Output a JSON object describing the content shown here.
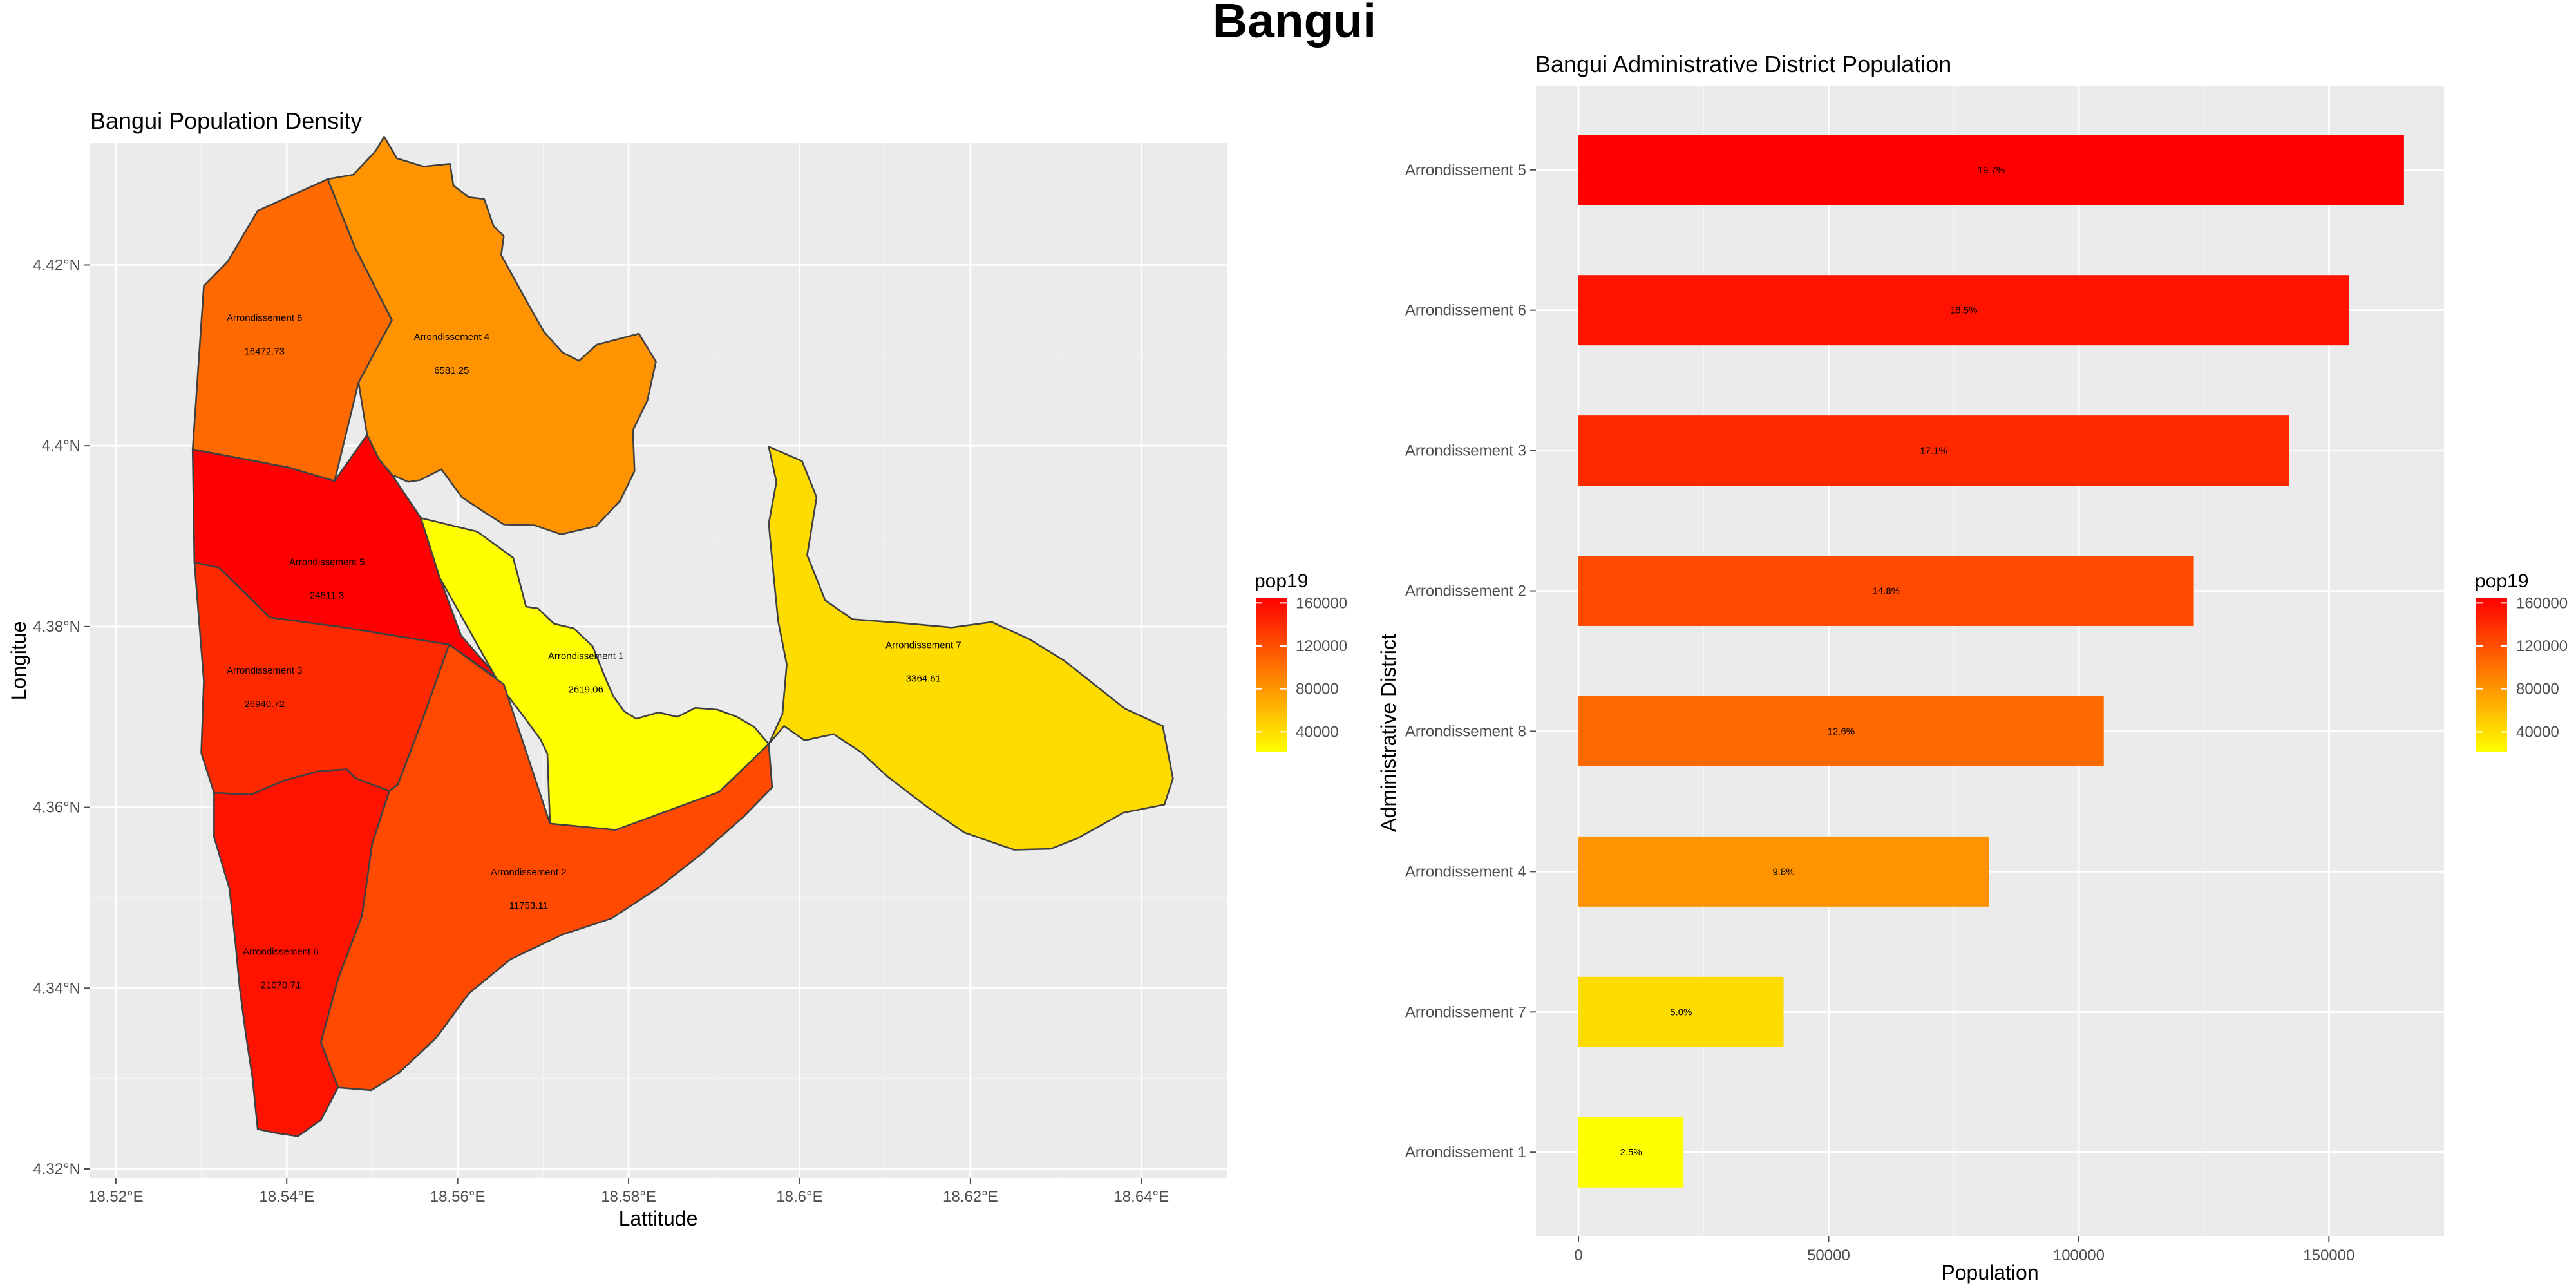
{
  "figure": {
    "title": "Bangui"
  },
  "colors": {
    "scale_low": "#ffff00",
    "scale_high": "#ff0000",
    "panel_background": "#ebebeb",
    "grid": "#ffffff",
    "district_outline": "#404040"
  },
  "chart_data": [
    {
      "type": "map",
      "title": "Bangui Population Density",
      "xlabel": "Lattitude",
      "ylabel": "Longitue",
      "xlim": [
        18.517,
        18.65
      ],
      "ylim": [
        4.319,
        4.4335
      ],
      "x_ticks": [
        18.52,
        18.54,
        18.56,
        18.58,
        18.6,
        18.62,
        18.64
      ],
      "x_tick_labels": [
        "18.52°E",
        "18.54°E",
        "18.56°E",
        "18.58°E",
        "18.6°E",
        "18.62°E",
        "18.64°E"
      ],
      "y_ticks": [
        4.32,
        4.34,
        4.36,
        4.38,
        4.4,
        4.42
      ],
      "y_tick_labels": [
        "4.32°N",
        "4.34°N",
        "4.36°N",
        "4.38°N",
        "4.4°N",
        "4.42°N"
      ],
      "fill_variable": "pop19",
      "grid": true,
      "regions": [
        {
          "name": "Arrondissement 8",
          "density": "16472.73",
          "pop19": 105000,
          "label_at": [
            18.5374,
            4.4138
          ],
          "boundary": [
            [
              18.5303,
              4.4177
            ],
            [
              18.5331,
              4.4204
            ],
            [
              18.5366,
              4.426
            ],
            [
              18.5448,
              4.4295
            ],
            [
              18.548,
              4.4219
            ],
            [
              18.5523,
              4.4139
            ],
            [
              18.5484,
              4.407
            ],
            [
              18.5456,
              4.3961
            ],
            [
              18.5402,
              4.3976
            ],
            [
              18.529,
              4.3996
            ],
            [
              18.5303,
              4.4177
            ]
          ]
        },
        {
          "name": "Arrondissement 4",
          "density": "6581.25",
          "pop19": 82000,
          "label_at": [
            18.5593,
            4.4117
          ],
          "boundary": [
            [
              18.5448,
              4.4295
            ],
            [
              18.5478,
              4.43
            ],
            [
              18.5504,
              4.4326
            ],
            [
              18.5514,
              4.4342
            ],
            [
              18.5529,
              4.4318
            ],
            [
              18.556,
              4.4309
            ],
            [
              18.5591,
              4.4312
            ],
            [
              18.5595,
              4.4288
            ],
            [
              18.5613,
              4.4275
            ],
            [
              18.5631,
              4.4273
            ],
            [
              18.5642,
              4.4243
            ],
            [
              18.5654,
              4.4232
            ],
            [
              18.5651,
              4.4211
            ],
            [
              18.5683,
              4.4156
            ],
            [
              18.5701,
              4.4126
            ],
            [
              18.5723,
              4.4103
            ],
            [
              18.5742,
              4.4094
            ],
            [
              18.5763,
              4.4112
            ],
            [
              18.5812,
              4.4124
            ],
            [
              18.5832,
              4.4093
            ],
            [
              18.5822,
              4.405
            ],
            [
              18.5805,
              4.4017
            ],
            [
              18.5807,
              4.3972
            ],
            [
              18.579,
              4.3939
            ],
            [
              18.5762,
              4.3911
            ],
            [
              18.5721,
              4.3902
            ],
            [
              18.569,
              4.3912
            ],
            [
              18.5654,
              4.3913
            ],
            [
              18.5632,
              4.3926
            ],
            [
              18.5605,
              4.3943
            ],
            [
              18.5581,
              4.3974
            ],
            [
              18.5556,
              4.3962
            ],
            [
              18.5542,
              4.396
            ],
            [
              18.5523,
              4.3968
            ],
            [
              18.5508,
              4.3985
            ],
            [
              18.5494,
              4.4012
            ],
            [
              18.5484,
              4.407
            ],
            [
              18.5523,
              4.4139
            ],
            [
              18.548,
              4.4219
            ],
            [
              18.5448,
              4.4295
            ]
          ]
        },
        {
          "name": "Arrondissement 5",
          "density": "24511.3",
          "pop19": 165000,
          "label_at": [
            18.5447,
            4.3868
          ],
          "boundary": [
            [
              18.529,
              4.3996
            ],
            [
              18.5402,
              4.3976
            ],
            [
              18.5456,
              4.3961
            ],
            [
              18.5494,
              4.4012
            ],
            [
              18.5508,
              4.3985
            ],
            [
              18.5523,
              4.3968
            ],
            [
              18.5557,
              4.392
            ],
            [
              18.5579,
              4.3854
            ],
            [
              18.5604,
              4.379
            ],
            [
              18.5654,
              4.3736
            ],
            [
              18.565,
              4.374
            ],
            [
              18.559,
              4.378
            ],
            [
              18.546,
              4.38
            ],
            [
              18.538,
              4.381
            ],
            [
              18.5321,
              4.3865
            ],
            [
              18.5292,
              4.3871
            ],
            [
              18.529,
              4.3996
            ]
          ]
        },
        {
          "name": "Arrondissement 1",
          "density": "2619.06",
          "pop19": 21000,
          "label_at": [
            18.575,
            4.3764
          ],
          "boundary": [
            [
              18.5557,
              4.392
            ],
            [
              18.5623,
              4.3905
            ],
            [
              18.5665,
              4.3876
            ],
            [
              18.568,
              4.3822
            ],
            [
              18.5694,
              4.382
            ],
            [
              18.5713,
              4.3803
            ],
            [
              18.5736,
              4.3798
            ],
            [
              18.5758,
              4.3778
            ],
            [
              18.5772,
              4.3745
            ],
            [
              18.5782,
              4.3723
            ],
            [
              18.5795,
              4.3706
            ],
            [
              18.5809,
              4.3698
            ],
            [
              18.5835,
              4.3705
            ],
            [
              18.5857,
              4.37
            ],
            [
              18.5878,
              4.371
            ],
            [
              18.5904,
              4.3708
            ],
            [
              18.5927,
              4.37
            ],
            [
              18.5947,
              4.3689
            ],
            [
              18.5964,
              4.367
            ],
            [
              18.595,
              4.363
            ],
            [
              18.5906,
              4.3617
            ],
            [
              18.5862,
              4.3597
            ],
            [
              18.583,
              4.3578
            ],
            [
              18.5785,
              4.3575
            ],
            [
              18.5747,
              4.3577
            ],
            [
              18.5708,
              4.3582
            ],
            [
              18.5705,
              4.3659
            ],
            [
              18.5697,
              4.3675
            ],
            [
              18.5676,
              4.3702
            ],
            [
              18.5651,
              4.3733
            ],
            [
              18.5579,
              4.3854
            ],
            [
              18.5557,
              4.392
            ]
          ]
        },
        {
          "name": "Arrondissement 7",
          "density": "3364.61",
          "pop19": 41000,
          "label_at": [
            18.6145,
            4.3776
          ],
          "boundary": [
            [
              18.5964,
              4.3999
            ],
            [
              18.6003,
              4.3983
            ],
            [
              18.602,
              4.3943
            ],
            [
              18.6009,
              4.3879
            ],
            [
              18.603,
              4.3829
            ],
            [
              18.6062,
              4.3808
            ],
            [
              18.6119,
              4.3804
            ],
            [
              18.6178,
              4.3799
            ],
            [
              18.6225,
              4.3805
            ],
            [
              18.6269,
              4.3786
            ],
            [
              18.631,
              4.3762
            ],
            [
              18.6381,
              4.3709
            ],
            [
              18.6425,
              4.369
            ],
            [
              18.6437,
              4.3632
            ],
            [
              18.6427,
              4.3603
            ],
            [
              18.6379,
              4.3594
            ],
            [
              18.6326,
              4.3566
            ],
            [
              18.6294,
              4.3554
            ],
            [
              18.6251,
              4.3553
            ],
            [
              18.6193,
              4.3572
            ],
            [
              18.615,
              4.36
            ],
            [
              18.6103,
              4.3634
            ],
            [
              18.6072,
              4.3661
            ],
            [
              18.604,
              4.3681
            ],
            [
              18.6006,
              4.3674
            ],
            [
              18.5982,
              4.369
            ],
            [
              18.5964,
              4.367
            ],
            [
              18.598,
              4.3703
            ],
            [
              18.5985,
              4.3758
            ],
            [
              18.5975,
              4.3806
            ],
            [
              18.597,
              4.3853
            ],
            [
              18.5964,
              4.3914
            ],
            [
              18.5973,
              4.396
            ],
            [
              18.5964,
              4.3999
            ]
          ]
        },
        {
          "name": "Arrondissement 3",
          "density": "26940.72",
          "pop19": 142000,
          "label_at": [
            18.5374,
            4.3748
          ],
          "boundary": [
            [
              18.5292,
              4.3871
            ],
            [
              18.5321,
              4.3865
            ],
            [
              18.538,
              4.381
            ],
            [
              18.546,
              4.38
            ],
            [
              18.559,
              4.378
            ],
            [
              18.556,
              4.37
            ],
            [
              18.553,
              4.3625
            ],
            [
              18.552,
              4.3618
            ],
            [
              18.5481,
              4.3632
            ],
            [
              18.547,
              4.3642
            ],
            [
              18.5438,
              4.364
            ],
            [
              18.5398,
              4.363
            ],
            [
              18.5358,
              4.3614
            ],
            [
              18.5315,
              4.3616
            ],
            [
              18.53,
              4.366
            ],
            [
              18.5303,
              4.374
            ],
            [
              18.5292,
              4.3871
            ]
          ]
        },
        {
          "name": "Arrondissement 2",
          "density": "11753.11",
          "pop19": 123000,
          "label_at": [
            18.5683,
            4.3525
          ],
          "boundary": [
            [
              18.559,
              4.378
            ],
            [
              18.5654,
              4.3736
            ],
            [
              18.5708,
              4.3582
            ],
            [
              18.5785,
              4.3575
            ],
            [
              18.5906,
              4.3617
            ],
            [
              18.5964,
              4.367
            ],
            [
              18.5968,
              4.3622
            ],
            [
              18.5935,
              4.359
            ],
            [
              18.5886,
              4.3549
            ],
            [
              18.5835,
              4.3511
            ],
            [
              18.578,
              4.3477
            ],
            [
              18.5722,
              4.3459
            ],
            [
              18.5662,
              4.3432
            ],
            [
              18.5613,
              4.3394
            ],
            [
              18.5575,
              4.3345
            ],
            [
              18.5531,
              4.3306
            ],
            [
              18.5499,
              4.3287
            ],
            [
              18.546,
              4.329
            ],
            [
              18.544,
              4.334
            ],
            [
              18.546,
              4.341
            ],
            [
              18.5488,
              4.348
            ],
            [
              18.55,
              4.356
            ],
            [
              18.552,
              4.3618
            ],
            [
              18.553,
              4.3625
            ],
            [
              18.556,
              4.37
            ],
            [
              18.559,
              4.378
            ]
          ]
        },
        {
          "name": "Arrondissement 6",
          "density": "21070.71",
          "pop19": 154000,
          "label_at": [
            18.5393,
            4.3437
          ],
          "boundary": [
            [
              18.5315,
              4.3616
            ],
            [
              18.5358,
              4.3614
            ],
            [
              18.5398,
              4.363
            ],
            [
              18.5438,
              4.364
            ],
            [
              18.547,
              4.3642
            ],
            [
              18.5481,
              4.3632
            ],
            [
              18.552,
              4.3618
            ],
            [
              18.55,
              4.356
            ],
            [
              18.5488,
              4.348
            ],
            [
              18.546,
              4.341
            ],
            [
              18.544,
              4.334
            ],
            [
              18.546,
              4.329
            ],
            [
              18.544,
              4.3254
            ],
            [
              18.5413,
              4.3236
            ],
            [
              18.5385,
              4.324
            ],
            [
              18.5366,
              4.3244
            ],
            [
              18.536,
              4.33
            ],
            [
              18.5352,
              4.335
            ],
            [
              18.5345,
              4.34
            ],
            [
              18.534,
              4.345
            ],
            [
              18.5333,
              4.351
            ],
            [
              18.5315,
              4.3567
            ],
            [
              18.5315,
              4.3616
            ]
          ]
        }
      ]
    },
    {
      "type": "bar",
      "orientation": "horizontal",
      "title": "Bangui Administrative District Population",
      "xlabel": "Population",
      "ylabel": "Administrative District",
      "xlim": [
        -8500,
        173000
      ],
      "x_ticks": [
        0,
        50000,
        100000,
        150000
      ],
      "x_tick_labels": [
        "0",
        "50000",
        "100000",
        "150000"
      ],
      "grid": true,
      "categories": [
        "Arrondissement 5",
        "Arrondissement 6",
        "Arrondissement 3",
        "Arrondissement 2",
        "Arrondissement 8",
        "Arrondissement 4",
        "Arrondissement 7",
        "Arrondissement 1"
      ],
      "values": [
        165000,
        154000,
        142000,
        123000,
        105000,
        82000,
        41000,
        21000
      ],
      "labels": [
        "19.7%",
        "18.5%",
        "17.1%",
        "14.8%",
        "12.6%",
        "9.8%",
        "5.0%",
        "2.5%"
      ]
    }
  ],
  "legend": {
    "title": "pop19",
    "range": [
      21000,
      165000
    ],
    "ticks": [
      40000,
      80000,
      120000,
      160000
    ],
    "tick_labels": [
      "40000",
      "80000",
      "120000",
      "160000"
    ]
  }
}
